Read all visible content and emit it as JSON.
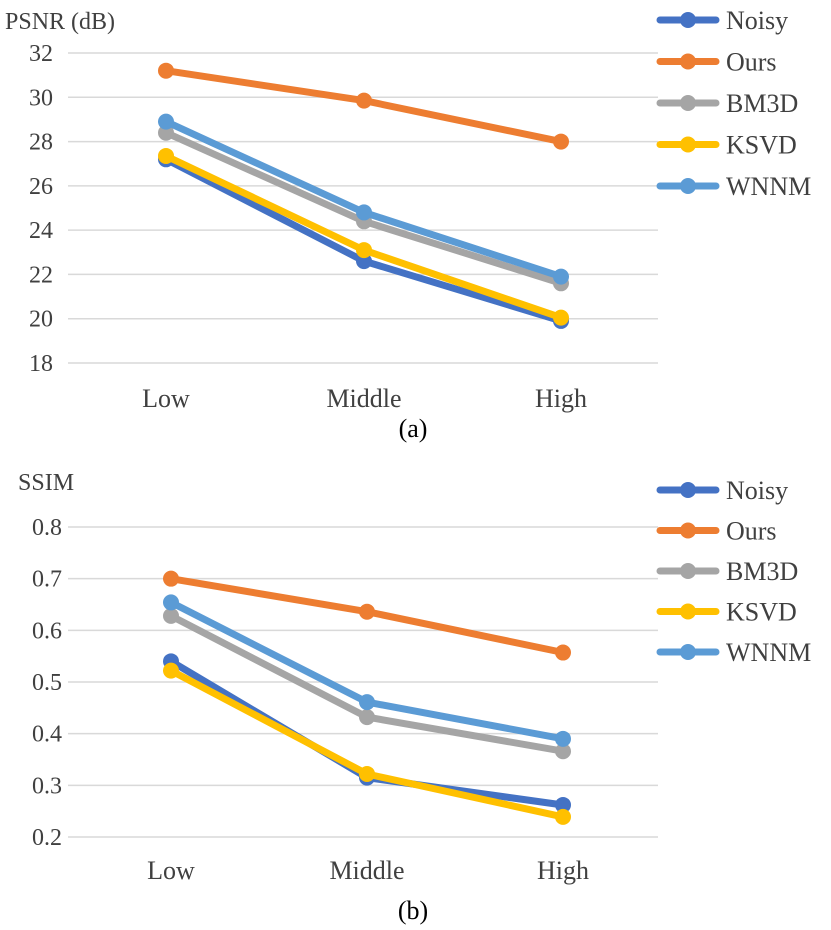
{
  "chart_data": [
    {
      "type": "line",
      "title": "PSNR (dB)",
      "caption": "(a)",
      "categories": [
        "Low",
        "Middle",
        "High"
      ],
      "ylim": [
        18,
        32
      ],
      "yticks": [
        "18",
        "20",
        "22",
        "24",
        "26",
        "28",
        "30",
        "32"
      ],
      "ytick_values": [
        18,
        20,
        22,
        24,
        26,
        28,
        30,
        32
      ],
      "grid": true,
      "legend_position": "right",
      "series": [
        {
          "name": "Noisy",
          "color": "#4472c4",
          "values": [
            27.2,
            22.6,
            19.9
          ]
        },
        {
          "name": "Ours",
          "color": "#ed7d31",
          "values": [
            31.2,
            29.85,
            28.0
          ]
        },
        {
          "name": "BM3D",
          "color": "#a5a5a5",
          "values": [
            28.4,
            24.4,
            21.6
          ]
        },
        {
          "name": "KSVD",
          "color": "#ffc000",
          "values": [
            27.35,
            23.1,
            20.05
          ]
        },
        {
          "name": "WNNM",
          "color": "#5b9bd5",
          "values": [
            28.9,
            24.8,
            21.9
          ]
        }
      ]
    },
    {
      "type": "line",
      "title": "SSIM",
      "caption": "(b)",
      "categories": [
        "Low",
        "Middle",
        "High"
      ],
      "ylim": [
        0.2,
        0.8
      ],
      "yticks": [
        "0.2",
        "0.3",
        "0.4",
        "0.5",
        "0.6",
        "0.7",
        "0.8"
      ],
      "ytick_values": [
        0.2,
        0.3,
        0.4,
        0.5,
        0.6,
        0.7,
        0.8
      ],
      "grid": true,
      "legend_position": "right",
      "series": [
        {
          "name": "Noisy",
          "color": "#4472c4",
          "values": [
            0.54,
            0.315,
            0.262
          ]
        },
        {
          "name": "Ours",
          "color": "#ed7d31",
          "values": [
            0.7,
            0.636,
            0.557
          ]
        },
        {
          "name": "BM3D",
          "color": "#a5a5a5",
          "values": [
            0.628,
            0.432,
            0.366
          ]
        },
        {
          "name": "KSVD",
          "color": "#ffc000",
          "values": [
            0.522,
            0.322,
            0.239
          ]
        },
        {
          "name": "WNNM",
          "color": "#5b9bd5",
          "values": [
            0.654,
            0.461,
            0.39
          ]
        }
      ]
    }
  ]
}
